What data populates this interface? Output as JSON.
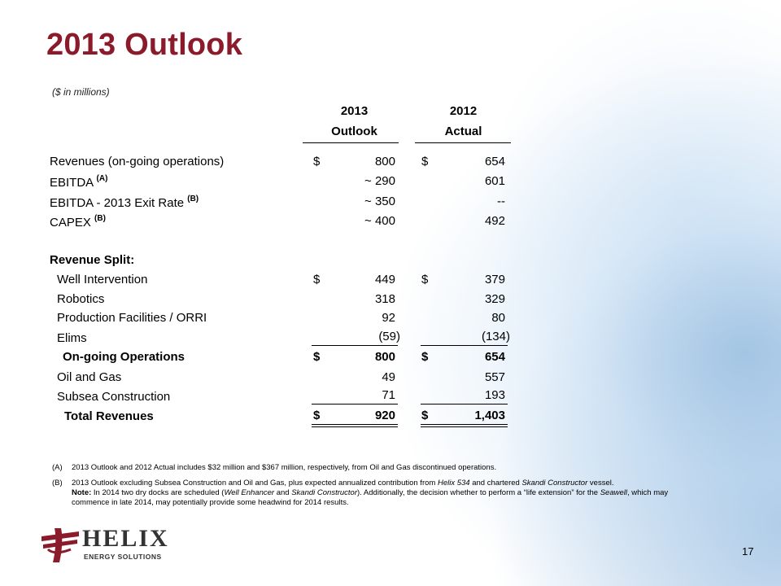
{
  "title": "2013 Outlook",
  "units": "($ in millions)",
  "columns": [
    {
      "year": "2013",
      "label": "Outlook"
    },
    {
      "year": "2012",
      "label": "Actual"
    }
  ],
  "rows": {
    "revenues": {
      "label": "Revenues (on-going operations)",
      "dollar": "$",
      "v2013": "800",
      "v2012": "654"
    },
    "ebitda": {
      "label": "EBITDA",
      "note": "(A)",
      "v2013": "~ 290",
      "v2012": "601"
    },
    "ebitda_exit": {
      "label": "EBITDA - 2013 Exit Rate",
      "note": "(B)",
      "v2013": "~ 350",
      "v2012": "--"
    },
    "capex": {
      "label": "CAPEX",
      "note": "(B)",
      "v2013": "~ 400",
      "v2012": "492"
    },
    "split_header": {
      "label": "Revenue Split:"
    },
    "well": {
      "label": "Well Intervention",
      "dollar": "$",
      "v2013": "449",
      "v2012": "379"
    },
    "robotics": {
      "label": "Robotics",
      "v2013": "318",
      "v2012": "329"
    },
    "production": {
      "label": "Production Facilities / ORRI",
      "v2013": "92",
      "v2012": "80"
    },
    "elims": {
      "label": "Elims",
      "v2013": "(59)",
      "v2012": "(134)"
    },
    "ongoing": {
      "label": "On-going Operations",
      "dollar": "$",
      "v2013": "800",
      "v2012": "654"
    },
    "oilgas": {
      "label": "Oil and Gas",
      "v2013": "49",
      "v2012": "557"
    },
    "subsea": {
      "label": "Subsea Construction",
      "v2013": "71",
      "v2012": "193"
    },
    "total": {
      "label": "Total Revenues",
      "dollar": "$",
      "v2013": "920",
      "v2012": "1,403"
    }
  },
  "footnotes": {
    "a_tag": "(A)",
    "a_text": "2013 Outlook and 2012 Actual includes $32 million and $367 million, respectively, from Oil and Gas discontinued operations.",
    "b_tag": "(B)",
    "b_text_1": "2013 Outlook excluding Subsea Construction and Oil and Gas, plus expected annualized contribution from ",
    "b_helix534": "Helix 534",
    "b_text_2": " and chartered ",
    "b_skandi": "Skandi Constructor",
    "b_text_3": " vessel.",
    "b_note_label": "Note:",
    "b_note_1": " In 2014 two dry docks are scheduled (",
    "b_well_enhancer": "Well Enhancer",
    "b_note_2": " and ",
    "b_skandi2": "Skandi Constructor",
    "b_note_3": "). Additionally, the decision whether to perform a “life extension” for the ",
    "b_seawell": "Seawell",
    "b_note_4": ", which may commence in late 2014, may potentially provide some headwind for 2014 results."
  },
  "logo": {
    "word": "HELIX",
    "sub": "ENERGY SOLUTIONS"
  },
  "page_number": "17",
  "colors": {
    "title": "#8b1a2b",
    "logo_red": "#8b1a2b"
  }
}
